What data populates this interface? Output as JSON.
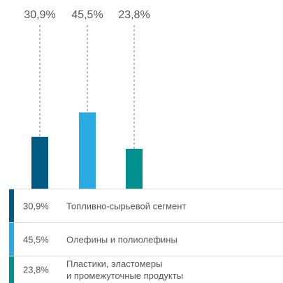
{
  "chart_data": {
    "type": "bar",
    "categories": [
      "Топливно-сырьевой сегмент",
      "Олефины и полиолефины",
      "Пластики, эластомеры\nи промежуточные продукты"
    ],
    "values": [
      30.9,
      45.5,
      23.8
    ],
    "value_labels": [
      "30,9%",
      "45,5%",
      "23,8%"
    ],
    "colors": [
      "#005a83",
      "#29abe2",
      "#00918f"
    ],
    "ylim": [
      0,
      100
    ]
  }
}
